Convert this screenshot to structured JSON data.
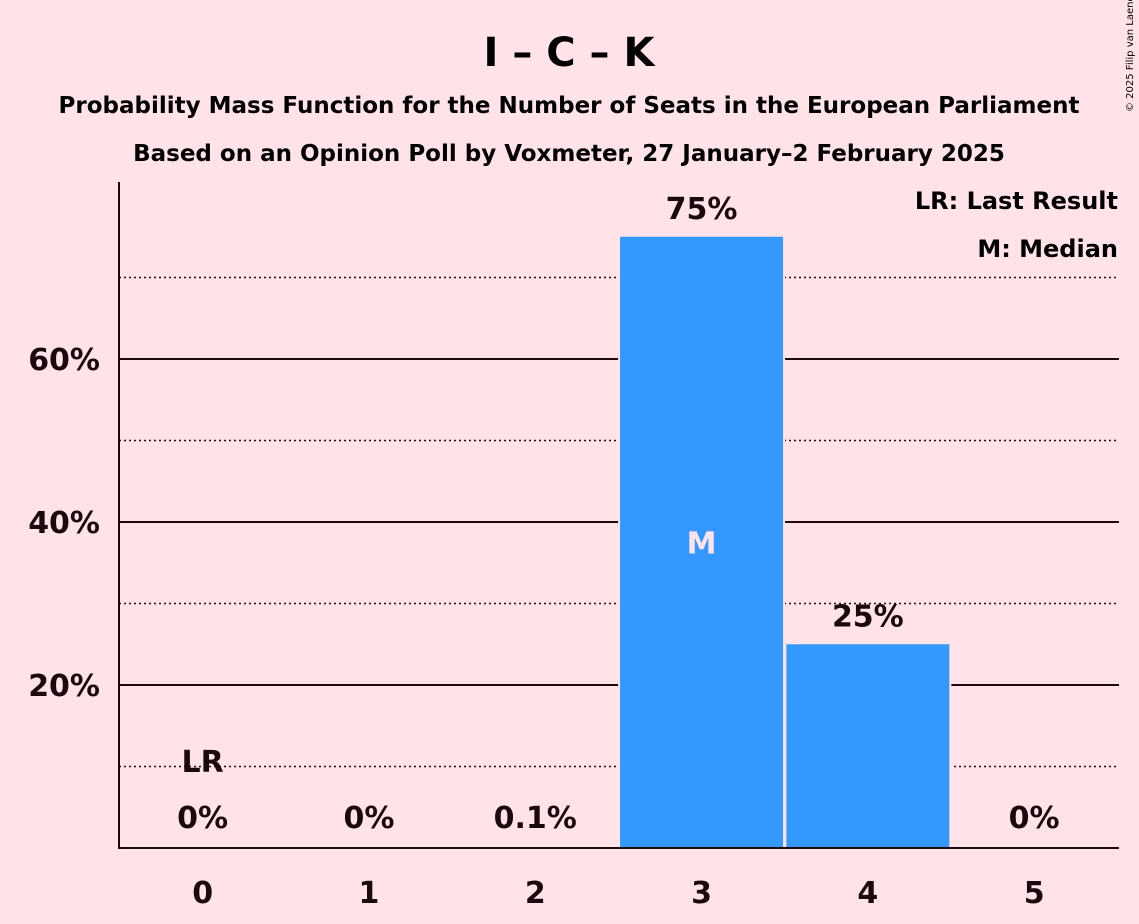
{
  "copyright": "© 2025 Filip van Laenen",
  "colors": {
    "background": "#FFE3E8",
    "bar": "#3399FF",
    "text": "#1a0a0d"
  },
  "chart_data": {
    "type": "bar",
    "title": "I – C – K",
    "subtitle": "Probability Mass Function for the Number of Seats in the European Parliament",
    "subtitle2": "Based on an Opinion Poll by Voxmeter, 27 January–2 February 2025",
    "xlabel": "",
    "ylabel": "",
    "categories": [
      "0",
      "1",
      "2",
      "3",
      "4",
      "5"
    ],
    "values": [
      0,
      0,
      0.1,
      75,
      25,
      0
    ],
    "value_labels": [
      "0%",
      "0%",
      "0.1%",
      "75%",
      "25%",
      "0%"
    ],
    "ylim": [
      0,
      81.5
    ],
    "y_ticks": [
      20,
      40,
      60
    ],
    "y_tick_labels": [
      "20%",
      "40%",
      "60%"
    ],
    "minor_gridlines": [
      10,
      30,
      50,
      70
    ],
    "grid": true,
    "last_result": {
      "category": "0",
      "label": "LR"
    },
    "median": {
      "category": "3",
      "label": "M"
    },
    "legend": {
      "placement": "top-right",
      "entries": [
        "LR: Last Result",
        "M: Median"
      ]
    }
  }
}
